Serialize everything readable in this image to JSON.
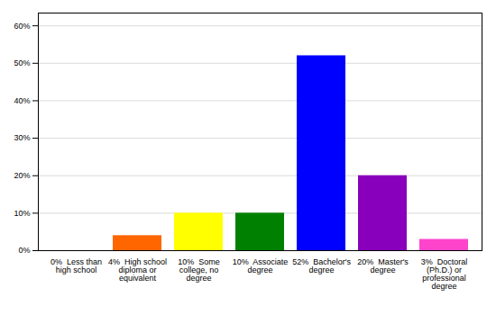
{
  "chart_data": {
    "type": "bar",
    "categories": [
      "0%  Less than\nhigh school",
      "4%  High school\ndiploma or\nequivalent",
      "10%  Some\ncollege, no\ndegree",
      "10%  Associate\ndegree",
      "52%  Bachelor's\ndegree",
      "20%  Master's\ndegree",
      "3%  Doctoral\n(Ph.D.) or\nprofessional\ndegree"
    ],
    "values": [
      0,
      4,
      10,
      10,
      52,
      20,
      3
    ],
    "colors": [
      "#cc0000",
      "#ff6600",
      "#ffff00",
      "#008000",
      "#0000ff",
      "#8800bb",
      "#ff44cc"
    ],
    "ylim": [
      0,
      63.4
    ],
    "yticks": [
      {
        "value": 0,
        "label": "0%"
      },
      {
        "value": 10,
        "label": "10%"
      },
      {
        "value": 20,
        "label": "20%"
      },
      {
        "value": 30,
        "label": "30%"
      },
      {
        "value": 40,
        "label": "40%"
      },
      {
        "value": 50,
        "label": "50%"
      },
      {
        "value": 60,
        "label": "60%"
      }
    ],
    "grid": true
  }
}
